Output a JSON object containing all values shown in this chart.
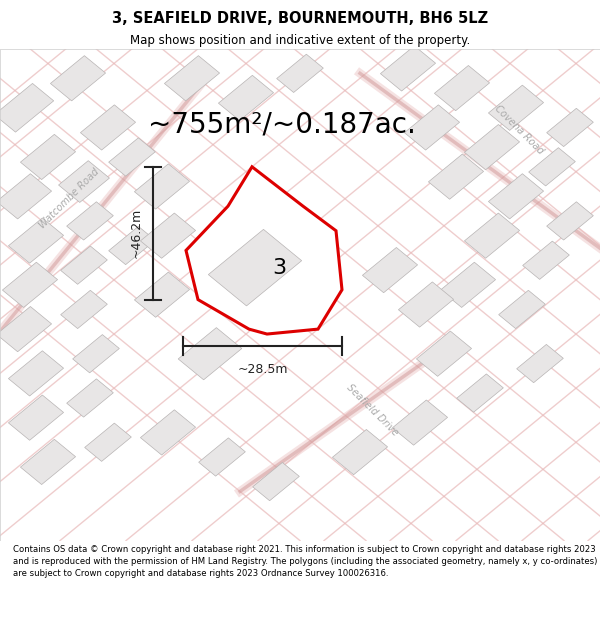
{
  "title": "3, SEAFIELD DRIVE, BOURNEMOUTH, BH6 5LZ",
  "subtitle": "Map shows position and indicative extent of the property.",
  "area_text": "~755m²/~0.187ac.",
  "dim_horizontal": "~28.5m",
  "dim_vertical": "~46.2m",
  "property_number": "3",
  "footer": "Contains OS data © Crown copyright and database right 2021. This information is subject to Crown copyright and database rights 2023 and is reproduced with the permission of HM Land Registry. The polygons (including the associated geometry, namely x, y co-ordinates) are subject to Crown copyright and database rights 2023 Ordnance Survey 100026316.",
  "map_bg": "#f8f7f7",
  "road_line_color": "#e8b8b8",
  "road_line_color2": "#d09898",
  "property_outline_color": "#dd0000",
  "building_fill": "#e8e6e6",
  "building_edge": "#b8b4b4",
  "dim_color": "#222222",
  "road_label_color": "#aaaaaa",
  "title_fontsize": 10.5,
  "subtitle_fontsize": 8.5,
  "area_fontsize": 20,
  "dim_fontsize": 9,
  "prop_label_fontsize": 16,
  "road_label_fontsize": 7
}
